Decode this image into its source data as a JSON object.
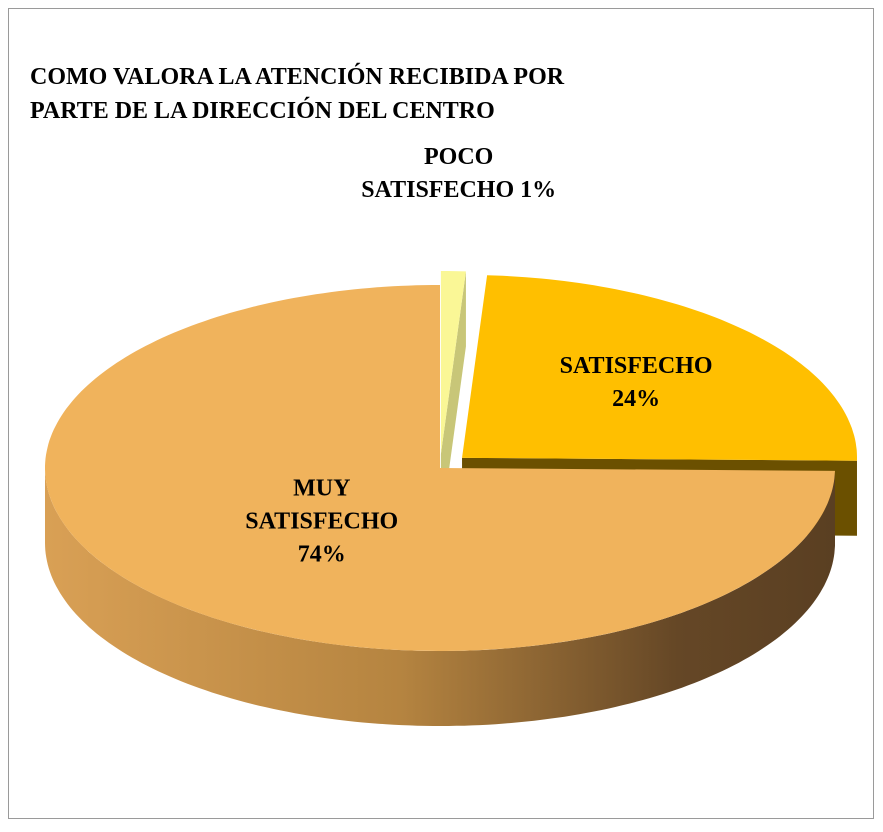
{
  "chart_data": {
    "type": "pie",
    "title": "COMO VALORA LA ATENCIÓN RECIBIDA POR PARTE DE LA DIRECCIÓN DEL CENTRO",
    "categories": [
      "POCO SATISFECHO",
      "SATISFECHO",
      "MUY SATISFECHO"
    ],
    "values": [
      1,
      24,
      74
    ],
    "value_labels": [
      "1%",
      "24%",
      "74%"
    ],
    "colors": [
      "#FAF796",
      "#FFBF00",
      "#F0B35C"
    ]
  }
}
